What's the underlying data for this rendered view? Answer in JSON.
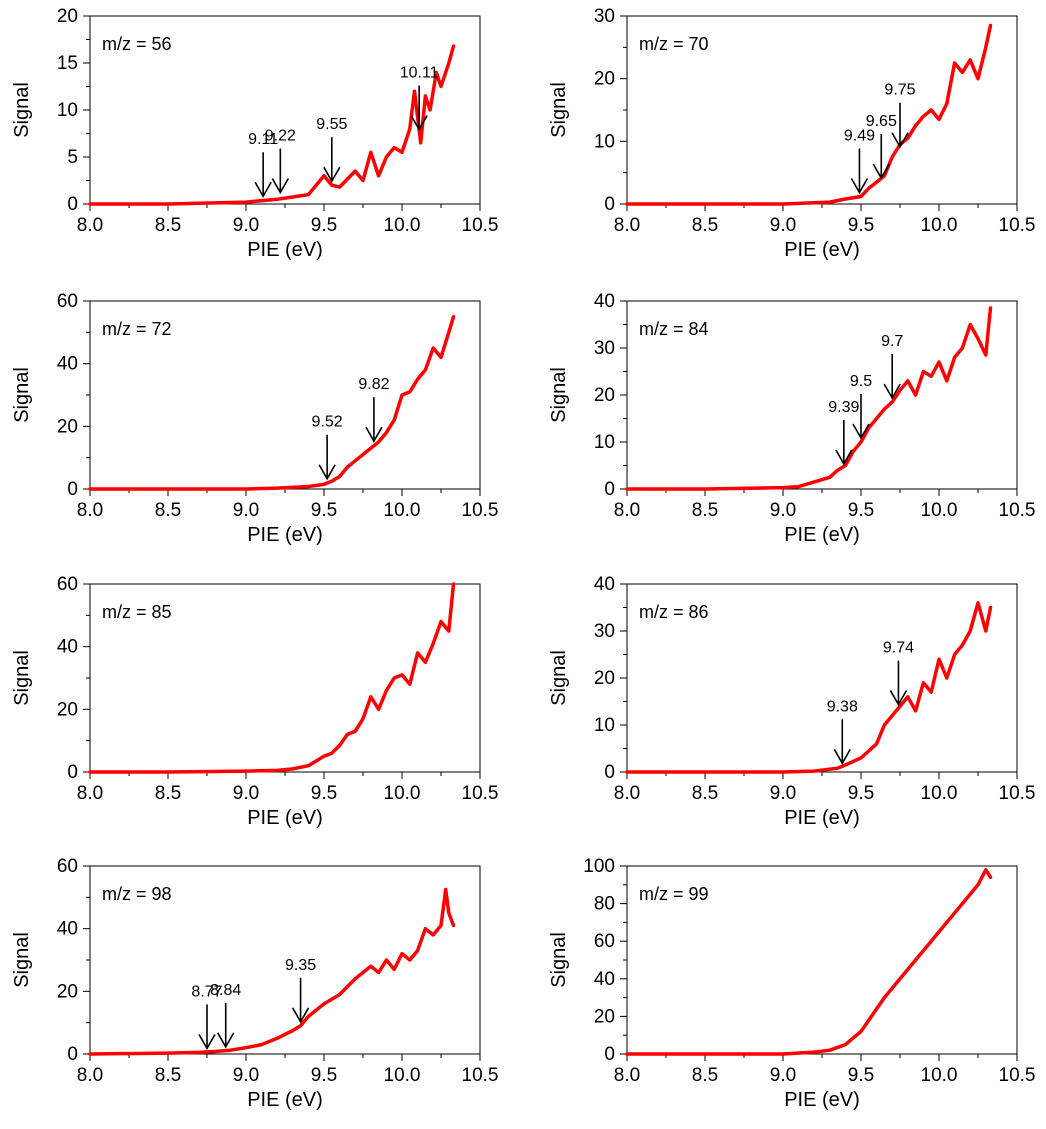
{
  "figure": {
    "line_color": "#ff0000",
    "xlabel": "PIE (eV)",
    "ylabel": "Signal",
    "xlim": [
      8.0,
      10.5
    ],
    "xticks": [
      8.0,
      8.5,
      9.0,
      9.5,
      10.0,
      10.5
    ],
    "xtick_labels": [
      "8.0",
      "8.5",
      "9.0",
      "9.5",
      "10.0",
      "10.5"
    ]
  },
  "chart_data": [
    {
      "type": "line",
      "panel_label": "m/z = 56",
      "xlabel": "PIE (eV)",
      "ylabel": "Signal",
      "xlim": [
        8.0,
        10.5
      ],
      "ylim": [
        0,
        20
      ],
      "yticks": [
        0,
        5,
        10,
        15,
        20
      ],
      "ytick_labels": [
        "0",
        "5",
        "10",
        "15",
        "20"
      ],
      "series": [
        {
          "x": [
            8.0,
            8.5,
            9.0,
            9.2,
            9.4,
            9.5,
            9.55,
            9.6,
            9.7,
            9.75,
            9.8,
            9.85,
            9.9,
            9.95,
            10.0,
            10.05,
            10.08,
            10.12,
            10.15,
            10.18,
            10.22,
            10.25,
            10.3,
            10.33
          ],
          "y": [
            0,
            0,
            0.2,
            0.5,
            1.0,
            3.0,
            2.0,
            1.8,
            3.5,
            2.5,
            5.5,
            3.0,
            5.0,
            6.0,
            5.5,
            8.0,
            12.0,
            6.5,
            11.5,
            10.0,
            14.0,
            12.5,
            15.0,
            16.8
          ]
        }
      ],
      "annotations": [
        {
          "label": "9.11",
          "x": 9.11,
          "y": 0.4
        },
        {
          "label": "9.22",
          "x": 9.22,
          "y": 0.8
        },
        {
          "label": "9.55",
          "x": 9.55,
          "y": 2.0
        },
        {
          "label": "10.11",
          "x": 10.11,
          "y": 7.5
        }
      ]
    },
    {
      "type": "line",
      "panel_label": "m/z = 70",
      "xlabel": "PIE (eV)",
      "ylabel": "Signal",
      "xlim": [
        8.0,
        10.5
      ],
      "ylim": [
        0,
        30
      ],
      "yticks": [
        0,
        10,
        20,
        30
      ],
      "ytick_labels": [
        "0",
        "10",
        "20",
        "30"
      ],
      "series": [
        {
          "x": [
            8.0,
            8.5,
            9.0,
            9.3,
            9.4,
            9.5,
            9.55,
            9.6,
            9.65,
            9.7,
            9.75,
            9.8,
            9.85,
            9.9,
            9.95,
            10.0,
            10.05,
            10.1,
            10.15,
            10.2,
            10.25,
            10.3,
            10.33
          ],
          "y": [
            0,
            0,
            0,
            0.3,
            0.8,
            1.2,
            2.5,
            3.5,
            4.5,
            7.5,
            9.5,
            10.5,
            12.5,
            14.0,
            15.0,
            13.5,
            16.0,
            22.5,
            21.0,
            23.0,
            20.0,
            25.0,
            28.5
          ]
        }
      ],
      "annotations": [
        {
          "label": "9.49",
          "x": 9.49,
          "y": 1.2
        },
        {
          "label": "9.65",
          "x": 9.63,
          "y": 3.5
        },
        {
          "label": "9.75",
          "x": 9.75,
          "y": 8.5
        }
      ]
    },
    {
      "type": "line",
      "panel_label": "m/z = 72",
      "xlabel": "PIE (eV)",
      "ylabel": "Signal",
      "xlim": [
        8.0,
        10.5
      ],
      "ylim": [
        0,
        60
      ],
      "yticks": [
        0,
        20,
        40,
        60
      ],
      "ytick_labels": [
        "0",
        "20",
        "40",
        "60"
      ],
      "series": [
        {
          "x": [
            8.0,
            8.5,
            9.0,
            9.2,
            9.4,
            9.5,
            9.55,
            9.6,
            9.65,
            9.7,
            9.75,
            9.8,
            9.85,
            9.9,
            9.95,
            10.0,
            10.05,
            10.1,
            10.15,
            10.2,
            10.25,
            10.3,
            10.33
          ],
          "y": [
            0,
            0,
            0,
            0.3,
            0.8,
            1.5,
            2.5,
            4.0,
            7.0,
            9.0,
            11.0,
            13.0,
            15.0,
            18.0,
            22.0,
            30.0,
            31.0,
            35.0,
            38.0,
            45.0,
            42.0,
            50.0,
            55.0
          ]
        }
      ],
      "annotations": [
        {
          "label": "9.52",
          "x": 9.52,
          "y": 2.0
        },
        {
          "label": "9.82",
          "x": 9.82,
          "y": 14.0
        }
      ]
    },
    {
      "type": "line",
      "panel_label": "m/z = 84",
      "xlabel": "PIE (eV)",
      "ylabel": "Signal",
      "xlim": [
        8.0,
        10.5
      ],
      "ylim": [
        0,
        40
      ],
      "yticks": [
        0,
        10,
        20,
        30,
        40
      ],
      "ytick_labels": [
        "0",
        "10",
        "20",
        "30",
        "40"
      ],
      "series": [
        {
          "x": [
            8.0,
            8.5,
            9.0,
            9.1,
            9.2,
            9.3,
            9.35,
            9.4,
            9.45,
            9.5,
            9.55,
            9.6,
            9.65,
            9.7,
            9.75,
            9.8,
            9.85,
            9.9,
            9.95,
            10.0,
            10.05,
            10.1,
            10.15,
            10.2,
            10.25,
            10.3,
            10.33
          ],
          "y": [
            0,
            0,
            0.3,
            0.5,
            1.5,
            2.5,
            4.0,
            5.0,
            8.0,
            10.0,
            13.0,
            15.0,
            17.0,
            18.5,
            21.0,
            23.0,
            20.0,
            25.0,
            24.0,
            27.0,
            23.0,
            28.0,
            30.0,
            35.0,
            32.0,
            28.5,
            38.5
          ]
        }
      ],
      "annotations": [
        {
          "label": "9.39",
          "x": 9.39,
          "y": 4.5
        },
        {
          "label": "9.5",
          "x": 9.5,
          "y": 10.0
        },
        {
          "label": "9.7",
          "x": 9.7,
          "y": 18.5
        }
      ]
    },
    {
      "type": "line",
      "panel_label": "m/z = 85",
      "xlabel": "PIE (eV)",
      "ylabel": "Signal",
      "xlim": [
        8.0,
        10.5
      ],
      "ylim": [
        0,
        60
      ],
      "yticks": [
        0,
        20,
        40,
        60
      ],
      "ytick_labels": [
        "0",
        "20",
        "40",
        "60"
      ],
      "series": [
        {
          "x": [
            8.0,
            8.5,
            9.0,
            9.2,
            9.3,
            9.4,
            9.5,
            9.55,
            9.6,
            9.65,
            9.7,
            9.75,
            9.8,
            9.85,
            9.9,
            9.95,
            10.0,
            10.05,
            10.1,
            10.15,
            10.2,
            10.25,
            10.3,
            10.33
          ],
          "y": [
            0,
            0,
            0.3,
            0.5,
            1.0,
            2.0,
            5.0,
            6.0,
            8.5,
            12.0,
            13.0,
            17.0,
            24.0,
            20.0,
            26.0,
            30.0,
            31.0,
            28.0,
            38.0,
            35.0,
            41.0,
            48.0,
            45.0,
            60.0
          ]
        }
      ],
      "annotations": []
    },
    {
      "type": "line",
      "panel_label": "m/z = 86",
      "xlabel": "PIE (eV)",
      "ylabel": "Signal",
      "xlim": [
        8.0,
        10.5
      ],
      "ylim": [
        0,
        40
      ],
      "yticks": [
        0,
        10,
        20,
        30,
        40
      ],
      "ytick_labels": [
        "0",
        "10",
        "20",
        "30",
        "40"
      ],
      "series": [
        {
          "x": [
            8.0,
            8.5,
            9.0,
            9.2,
            9.35,
            9.4,
            9.5,
            9.55,
            9.6,
            9.65,
            9.7,
            9.75,
            9.8,
            9.85,
            9.9,
            9.95,
            10.0,
            10.05,
            10.1,
            10.15,
            10.2,
            10.25,
            10.3,
            10.33
          ],
          "y": [
            0,
            0,
            0,
            0.2,
            0.8,
            1.5,
            3.0,
            4.5,
            6.0,
            10.0,
            12.0,
            14.0,
            16.0,
            13.0,
            19.0,
            17.0,
            24.0,
            20.0,
            25.0,
            27.0,
            30.0,
            36.0,
            30.0,
            35.0
          ]
        }
      ],
      "annotations": [
        {
          "label": "9.38",
          "x": 9.38,
          "y": 1.0
        },
        {
          "label": "9.74",
          "x": 9.74,
          "y": 13.5
        }
      ]
    },
    {
      "type": "line",
      "panel_label": "m/z = 98",
      "xlabel": "PIE (eV)",
      "ylabel": "Signal",
      "xlim": [
        8.0,
        10.5
      ],
      "ylim": [
        0,
        60
      ],
      "yticks": [
        0,
        20,
        40,
        60
      ],
      "ytick_labels": [
        "0",
        "20",
        "40",
        "60"
      ],
      "series": [
        {
          "x": [
            8.0,
            8.5,
            8.7,
            8.8,
            8.9,
            9.0,
            9.1,
            9.2,
            9.3,
            9.35,
            9.4,
            9.5,
            9.6,
            9.7,
            9.8,
            9.85,
            9.9,
            9.95,
            10.0,
            10.05,
            10.1,
            10.15,
            10.2,
            10.25,
            10.28,
            10.3,
            10.33
          ],
          "y": [
            0,
            0.3,
            0.5,
            0.8,
            1.2,
            2.0,
            3.0,
            5.0,
            7.5,
            9.0,
            12.0,
            16.0,
            19.0,
            24.0,
            28.0,
            26.0,
            30.0,
            27.0,
            32.0,
            30.0,
            33.0,
            40.0,
            38.0,
            41.0,
            52.5,
            45.0,
            41.0
          ]
        }
      ],
      "annotations": [
        {
          "label": "8.77",
          "x": 8.75,
          "y": 0.5
        },
        {
          "label": "8.84",
          "x": 8.87,
          "y": 1.0
        },
        {
          "label": "9.35",
          "x": 9.35,
          "y": 9.0
        }
      ]
    },
    {
      "type": "line",
      "panel_label": "m/z = 99",
      "xlabel": "PIE (eV)",
      "ylabel": "Signal",
      "xlim": [
        8.0,
        10.5
      ],
      "ylim": [
        0,
        100
      ],
      "yticks": [
        0,
        20,
        40,
        60,
        80,
        100
      ],
      "ytick_labels": [
        "0",
        "20",
        "40",
        "60",
        "80",
        "100"
      ],
      "series": [
        {
          "x": [
            8.0,
            8.5,
            9.0,
            9.2,
            9.3,
            9.4,
            9.5,
            9.55,
            9.6,
            9.65,
            9.7,
            9.75,
            9.8,
            9.85,
            9.9,
            9.95,
            10.0,
            10.05,
            10.1,
            10.15,
            10.2,
            10.25,
            10.3,
            10.33
          ],
          "y": [
            0,
            0,
            0,
            1.0,
            2.0,
            5.0,
            12.0,
            18.0,
            24.0,
            30.0,
            35.0,
            40.0,
            45.0,
            50.0,
            55.0,
            60.0,
            65.0,
            70.0,
            75.0,
            80.0,
            85.0,
            90.0,
            98.0,
            94.0
          ]
        }
      ],
      "annotations": []
    }
  ]
}
